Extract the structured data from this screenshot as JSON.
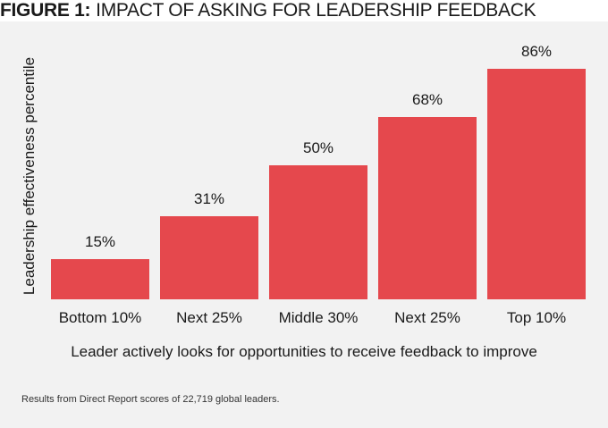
{
  "title": {
    "prefix": "FIGURE 1:",
    "text": "IMPACT OF ASKING FOR LEADERSHIP FEEDBACK"
  },
  "footnote": "Results from Direct Report scores of 22,719 global leaders.",
  "colors": {
    "bar": "#e5484d",
    "background": "#f2f2f2"
  },
  "chart_data": {
    "type": "bar",
    "title": "IMPACT OF ASKING FOR LEADERSHIP FEEDBACK",
    "categories": [
      "Bottom 10%",
      "Next 25%",
      "Middle 30%",
      "Next 25%",
      "Top 10%"
    ],
    "values": [
      15,
      31,
      50,
      68,
      86
    ],
    "value_labels": [
      "15%",
      "31%",
      "50%",
      "68%",
      "86%"
    ],
    "xlabel": "Leader actively looks for opportunities to receive feedback to improve",
    "ylabel": "Leadership effectiveness percentile",
    "ylim": [
      0,
      100
    ],
    "grid": false,
    "legend": "none"
  }
}
